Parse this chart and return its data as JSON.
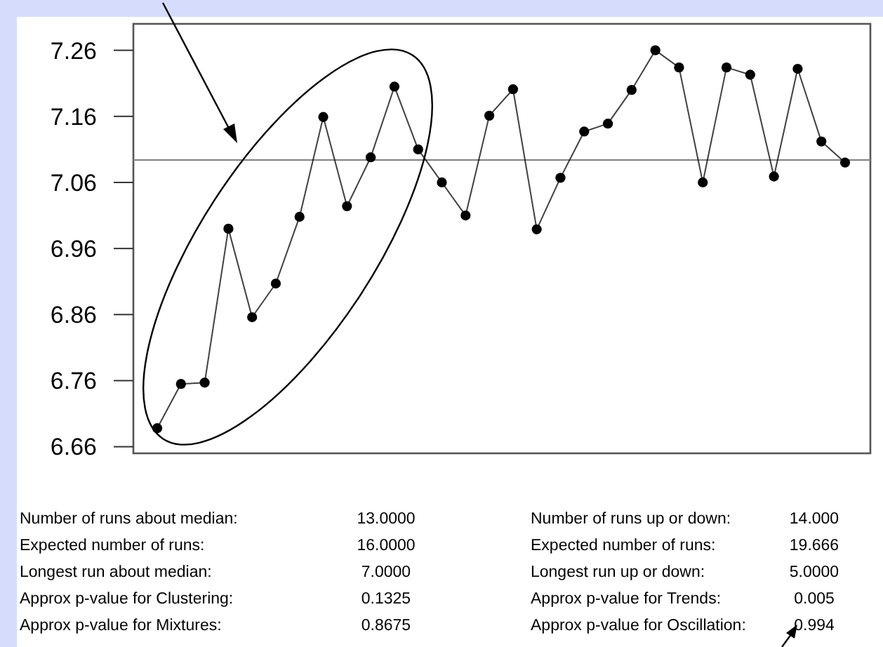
{
  "chart_data": {
    "type": "line",
    "categories": [
      null,
      null,
      null,
      null,
      null,
      null,
      null,
      null,
      null,
      null,
      null,
      null,
      null,
      null,
      null,
      null,
      null,
      null,
      null,
      null,
      null,
      null,
      null,
      null,
      null,
      null,
      null,
      null,
      null,
      null
    ],
    "series": [
      {
        "color": "#000000",
        "values": [
          6.688,
          6.755,
          6.757,
          6.99,
          6.856,
          6.907,
          7.008,
          7.159,
          7.024,
          7.098,
          7.205,
          7.11,
          7.06,
          7.01,
          7.161,
          7.201,
          6.989,
          7.067,
          7.137,
          7.149,
          7.2,
          7.26,
          7.234,
          7.06,
          7.234,
          7.223,
          7.069,
          7.232,
          7.122,
          7.09
        ]
      }
    ],
    "ylim": [
      6.65,
      7.3
    ],
    "yticks": [
      6.66,
      6.76,
      6.86,
      6.96,
      7.06,
      7.16,
      7.26
    ],
    "grid": false,
    "marker": "circle",
    "line_style": "solid",
    "ref_lines": [
      {
        "axis": "y",
        "value": 7.094,
        "color": "#808080"
      }
    ],
    "annotations": [
      "Number of runs about median:",
      "13.0000",
      "Expected number of runs:",
      "16.0000",
      "Longest run about median:",
      "7.0000",
      "Approx p-value for Clustering:",
      "0.1325",
      "Approx p-value for Mixtures:",
      "0.8675",
      "Number of runs up or down:",
      "14.000",
      "Expected number of runs:",
      "19.666",
      "Longest run up or down:",
      "5.0000",
      "Approx p-value for Trends:",
      "0.005",
      "Approx p-value for Oscillation:",
      "0.994"
    ]
  }
}
